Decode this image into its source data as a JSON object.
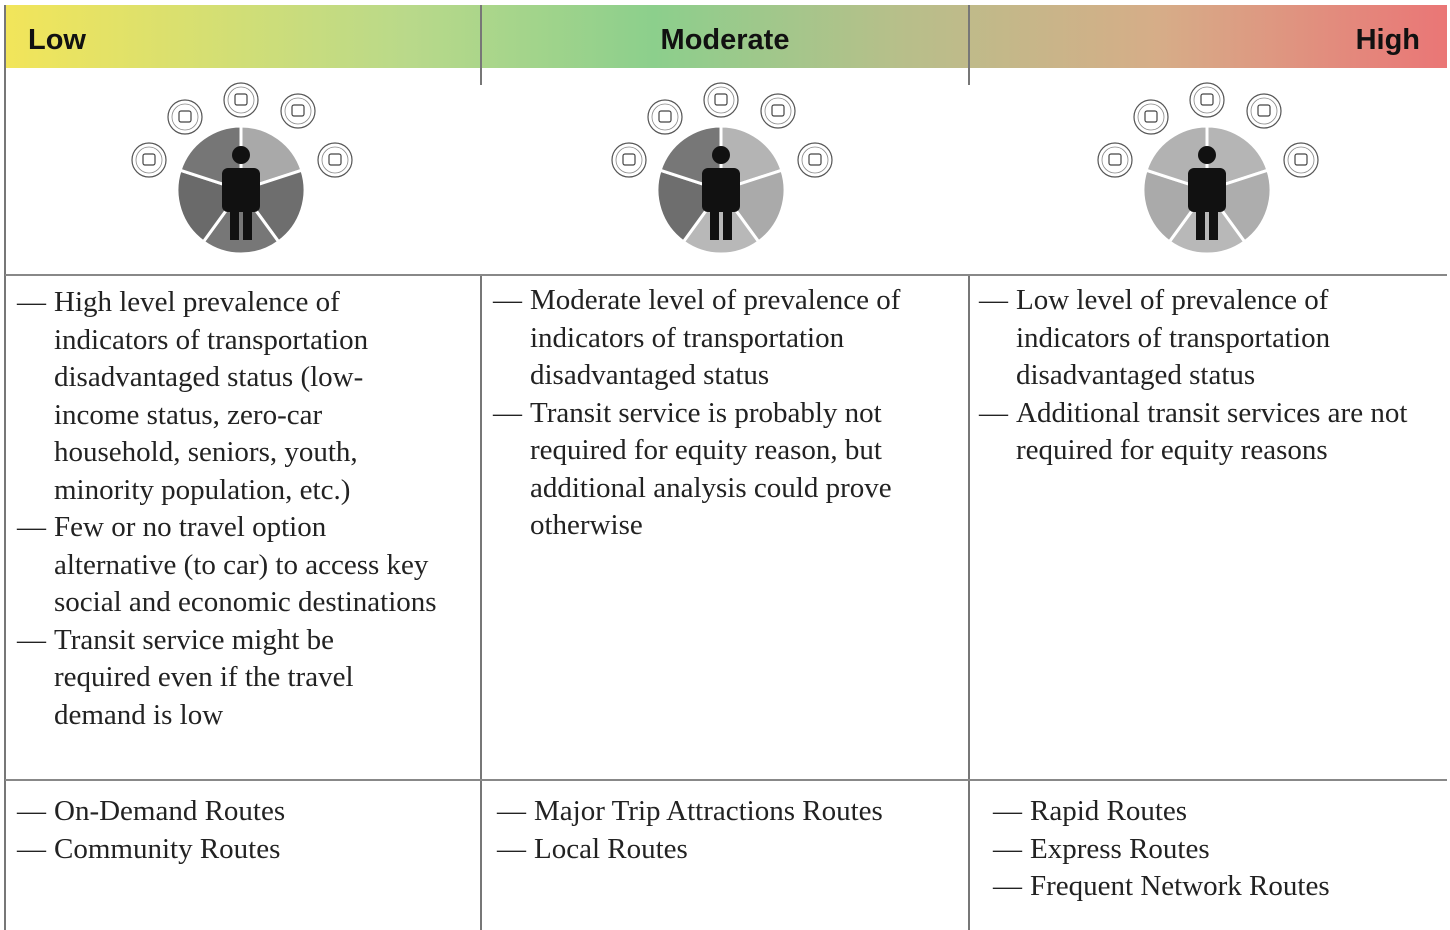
{
  "columns": [
    {
      "level": "Low",
      "description": [
        "High level prevalence of indicators of transportation disadvantaged status (low-income status, zero-car household, seniors, youth, minority population, etc.)",
        "Few or no travel option alternative (to car) to access key social and economic destinations",
        "Transit service might be required even if the travel demand is low"
      ],
      "routes": [
        "On-Demand Routes",
        "Community Routes"
      ]
    },
    {
      "level": "Moderate",
      "description": [
        "Moderate level of prevalence of indicators of transportation disadvantaged status",
        "Transit service is probably not required for equity reason, but additional analysis could prove otherwise"
      ],
      "routes": [
        "Major Trip Attractions Routes",
        "Local Routes"
      ]
    },
    {
      "level": "High",
      "description": [
        "Low level of prevalence of indicators of transportation disadvantaged status",
        "Additional transit services are not required for equity reasons"
      ],
      "routes": [
        "Rapid Routes",
        "Express Routes",
        "Frequent Network Routes"
      ]
    }
  ]
}
